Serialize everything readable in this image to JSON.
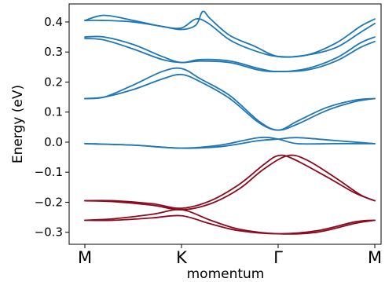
{
  "chart_data": {
    "type": "line",
    "title": "",
    "xlabel": "momentum",
    "ylabel": "Energy (eV)",
    "x_ticks": [
      {
        "label": "M",
        "x": 0
      },
      {
        "label": "K",
        "x": 1
      },
      {
        "label": "Γ",
        "x": 2
      },
      {
        "label": "M",
        "x": 3
      }
    ],
    "xlim": [
      0,
      3
    ],
    "ylim": [
      -0.34,
      0.46
    ],
    "y_ticks": [
      {
        "label": "0.4",
        "value": 0.4
      },
      {
        "label": "0.3",
        "value": 0.3
      },
      {
        "label": "0.2",
        "value": 0.2
      },
      {
        "label": "0.1",
        "value": 0.1
      },
      {
        "label": "0.0",
        "value": 0.0
      },
      {
        "label": "−0.1",
        "value": -0.1
      },
      {
        "label": "−0.2",
        "value": -0.2
      },
      {
        "label": "−0.3",
        "value": -0.3
      }
    ],
    "grid": false,
    "legend": "none",
    "colors": {
      "conduction": "#1f77b4",
      "valence": "#8b0a1f"
    },
    "series": [
      {
        "group": "conduction",
        "values": [
          [
            0,
            0.405
          ],
          [
            0.2,
            0.422
          ],
          [
            0.5,
            0.405
          ],
          [
            0.8,
            0.385
          ],
          [
            1.0,
            0.38
          ],
          [
            1.15,
            0.41
          ],
          [
            1.28,
            0.395
          ],
          [
            1.5,
            0.34
          ],
          [
            1.75,
            0.305
          ],
          [
            2.0,
            0.285
          ],
          [
            2.3,
            0.29
          ],
          [
            2.6,
            0.33
          ],
          [
            2.85,
            0.385
          ],
          [
            3,
            0.41
          ]
        ]
      },
      {
        "group": "conduction",
        "values": [
          [
            0,
            0.405
          ],
          [
            0.2,
            0.405
          ],
          [
            0.5,
            0.4
          ],
          [
            0.8,
            0.385
          ],
          [
            1.0,
            0.375
          ],
          [
            1.15,
            0.39
          ],
          [
            1.22,
            0.435
          ],
          [
            1.3,
            0.41
          ],
          [
            1.5,
            0.355
          ],
          [
            1.75,
            0.32
          ],
          [
            2.0,
            0.285
          ],
          [
            2.3,
            0.29
          ],
          [
            2.6,
            0.315
          ],
          [
            2.85,
            0.365
          ],
          [
            3,
            0.395
          ]
        ]
      },
      {
        "group": "conduction",
        "values": [
          [
            0,
            0.35
          ],
          [
            0.2,
            0.35
          ],
          [
            0.5,
            0.325
          ],
          [
            0.8,
            0.285
          ],
          [
            1.0,
            0.265
          ],
          [
            1.2,
            0.275
          ],
          [
            1.5,
            0.27
          ],
          [
            1.8,
            0.245
          ],
          [
            2.0,
            0.235
          ],
          [
            2.3,
            0.245
          ],
          [
            2.6,
            0.28
          ],
          [
            2.85,
            0.33
          ],
          [
            3,
            0.35
          ]
        ]
      },
      {
        "group": "conduction",
        "values": [
          [
            0,
            0.345
          ],
          [
            0.2,
            0.34
          ],
          [
            0.5,
            0.31
          ],
          [
            0.8,
            0.275
          ],
          [
            1.0,
            0.265
          ],
          [
            1.2,
            0.27
          ],
          [
            1.5,
            0.265
          ],
          [
            1.8,
            0.24
          ],
          [
            2.0,
            0.235
          ],
          [
            2.3,
            0.24
          ],
          [
            2.6,
            0.27
          ],
          [
            2.85,
            0.315
          ],
          [
            3,
            0.335
          ]
        ]
      },
      {
        "group": "conduction",
        "values": [
          [
            0,
            0.145
          ],
          [
            0.2,
            0.15
          ],
          [
            0.5,
            0.19
          ],
          [
            0.8,
            0.235
          ],
          [
            1.0,
            0.245
          ],
          [
            1.2,
            0.21
          ],
          [
            1.5,
            0.155
          ],
          [
            1.8,
            0.07
          ],
          [
            2.0,
            0.04
          ],
          [
            2.2,
            0.07
          ],
          [
            2.5,
            0.115
          ],
          [
            2.8,
            0.14
          ],
          [
            3,
            0.145
          ]
        ]
      },
      {
        "group": "conduction",
        "values": [
          [
            0,
            0.145
          ],
          [
            0.2,
            0.15
          ],
          [
            0.5,
            0.175
          ],
          [
            0.8,
            0.21
          ],
          [
            1.0,
            0.225
          ],
          [
            1.2,
            0.2
          ],
          [
            1.5,
            0.145
          ],
          [
            1.8,
            0.065
          ],
          [
            2.0,
            0.04
          ],
          [
            2.2,
            0.06
          ],
          [
            2.5,
            0.105
          ],
          [
            2.8,
            0.135
          ],
          [
            3,
            0.145
          ]
        ]
      },
      {
        "group": "conduction",
        "values": [
          [
            0,
            -0.005
          ],
          [
            0.5,
            -0.01
          ],
          [
            1.0,
            -0.02
          ],
          [
            1.4,
            -0.01
          ],
          [
            1.8,
            0.015
          ],
          [
            2.0,
            0.01
          ],
          [
            2.2,
            -0.005
          ],
          [
            2.6,
            -0.005
          ],
          [
            3,
            -0.005
          ]
        ]
      },
      {
        "group": "conduction",
        "values": [
          [
            0,
            -0.005
          ],
          [
            0.5,
            -0.01
          ],
          [
            1.0,
            -0.02
          ],
          [
            1.4,
            -0.015
          ],
          [
            1.8,
            0.005
          ],
          [
            2.0,
            0.01
          ],
          [
            2.2,
            0.015
          ],
          [
            2.6,
            0.005
          ],
          [
            3,
            -0.005
          ]
        ]
      },
      {
        "group": "valence",
        "values": [
          [
            0,
            -0.195
          ],
          [
            0.3,
            -0.195
          ],
          [
            0.7,
            -0.205
          ],
          [
            1.0,
            -0.22
          ],
          [
            1.3,
            -0.195
          ],
          [
            1.6,
            -0.14
          ],
          [
            1.85,
            -0.075
          ],
          [
            2.0,
            -0.045
          ],
          [
            2.15,
            -0.055
          ],
          [
            2.5,
            -0.115
          ],
          [
            2.8,
            -0.17
          ],
          [
            3,
            -0.195
          ]
        ]
      },
      {
        "group": "valence",
        "values": [
          [
            0,
            -0.195
          ],
          [
            0.3,
            -0.198
          ],
          [
            0.7,
            -0.21
          ],
          [
            1.0,
            -0.225
          ],
          [
            1.3,
            -0.205
          ],
          [
            1.6,
            -0.155
          ],
          [
            1.85,
            -0.09
          ],
          [
            2.1,
            -0.045
          ],
          [
            2.3,
            -0.06
          ],
          [
            2.6,
            -0.12
          ],
          [
            2.85,
            -0.175
          ],
          [
            3,
            -0.195
          ]
        ]
      },
      {
        "group": "valence",
        "values": [
          [
            0,
            -0.26
          ],
          [
            0.3,
            -0.255
          ],
          [
            0.7,
            -0.24
          ],
          [
            1.0,
            -0.225
          ],
          [
            1.3,
            -0.26
          ],
          [
            1.6,
            -0.29
          ],
          [
            2.0,
            -0.305
          ],
          [
            2.4,
            -0.3
          ],
          [
            2.8,
            -0.27
          ],
          [
            3,
            -0.26
          ]
        ]
      },
      {
        "group": "valence",
        "values": [
          [
            0,
            -0.26
          ],
          [
            0.3,
            -0.26
          ],
          [
            0.7,
            -0.252
          ],
          [
            1.0,
            -0.245
          ],
          [
            1.3,
            -0.272
          ],
          [
            1.6,
            -0.295
          ],
          [
            2.0,
            -0.305
          ],
          [
            2.4,
            -0.295
          ],
          [
            2.8,
            -0.265
          ],
          [
            3,
            -0.26
          ]
        ]
      }
    ]
  }
}
